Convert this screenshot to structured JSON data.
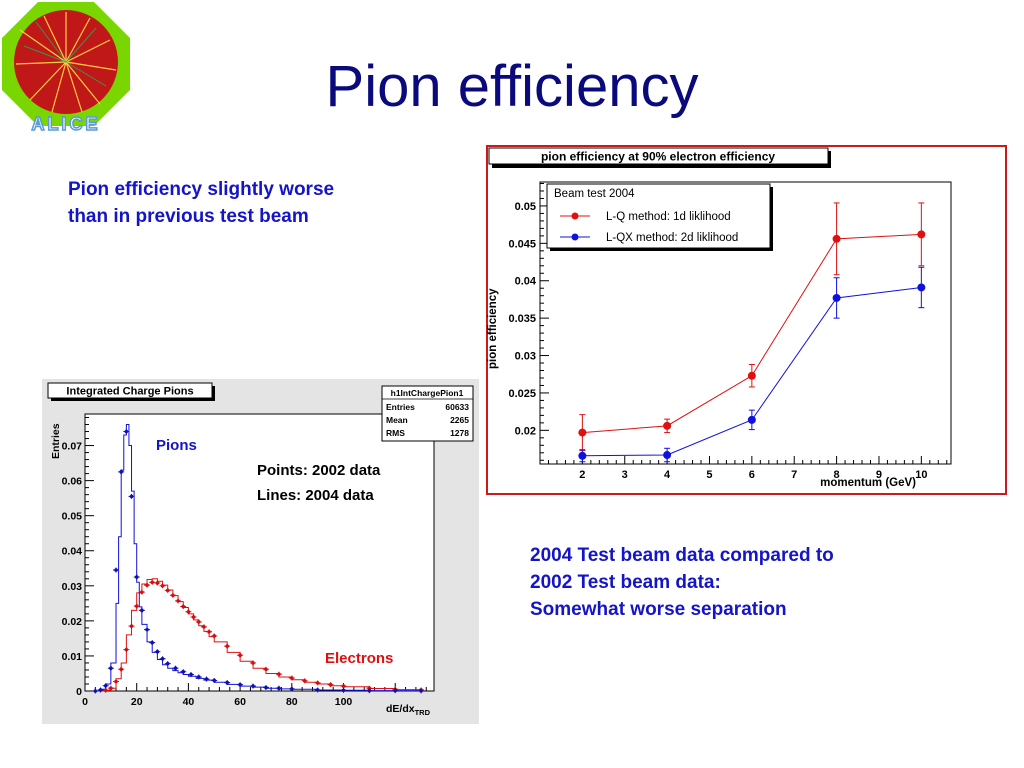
{
  "slide": {
    "title": "Pion efficiency",
    "logo_text": "ALICE",
    "note_left": [
      "Pion efficiency slightly worse",
      "than in previous test beam"
    ],
    "note_right": [
      "2004 Test beam  data compared to",
      "2002 Test beam data:",
      "Somewhat worse separation"
    ]
  },
  "colors": {
    "title": "#0a0a7c",
    "note": "#1414c8",
    "red": "#e01010",
    "blue": "#1010e0",
    "frame_red": "#cc1a1a"
  },
  "chart_data": [
    {
      "type": "scatter",
      "title": "pion efficiency at 90% electron efficiency",
      "xlabel": "momentum (GeV)",
      "ylabel": "pion efficiency",
      "xlim": [
        1.0,
        10.7
      ],
      "ylim": [
        0.0155,
        0.0532
      ],
      "xticks": [
        "2",
        "3",
        "4",
        "5",
        "6",
        "7",
        "8",
        "9",
        "10"
      ],
      "yticks": [
        "0.02",
        "0.025",
        "0.03",
        "0.035",
        "0.04",
        "0.045",
        "0.05"
      ],
      "legend": {
        "title": "Beam test 2004",
        "position": "top-left",
        "entries": [
          "L-Q method: 1d liklihood",
          "L-QX method: 2d liklihood"
        ]
      },
      "series": [
        {
          "name": "L-Q method: 1d liklihood",
          "color": "#e01010",
          "points": [
            {
              "x": 2,
              "y": 0.0197,
              "err": 0.0024
            },
            {
              "x": 4,
              "y": 0.0206,
              "err": 0.0009
            },
            {
              "x": 6,
              "y": 0.0273,
              "err": 0.0015
            },
            {
              "x": 8,
              "y": 0.0456,
              "err": 0.0048
            },
            {
              "x": 10,
              "y": 0.0462,
              "err": 0.0042
            }
          ]
        },
        {
          "name": "L-QX method: 2d liklihood",
          "color": "#1010e0",
          "points": [
            {
              "x": 2,
              "y": 0.0166,
              "err": 0.0008
            },
            {
              "x": 4,
              "y": 0.0167,
              "err": 0.0009
            },
            {
              "x": 6,
              "y": 0.0214,
              "err": 0.0013
            },
            {
              "x": 8,
              "y": 0.0377,
              "err": 0.0027
            },
            {
              "x": 10,
              "y": 0.0391,
              "err": 0.0027
            }
          ]
        }
      ]
    },
    {
      "type": "line",
      "title": "Integrated Charge Pions",
      "xlabel": "dE/dx",
      "xlabel_sub": "TRD",
      "ylabel": "Entries",
      "xlim": [
        0,
        135
      ],
      "ylim": [
        0,
        0.079
      ],
      "xticks": [
        "0",
        "20",
        "40",
        "60",
        "80",
        "100"
      ],
      "yticks": [
        "0",
        "0.01",
        "0.02",
        "0.03",
        "0.04",
        "0.05",
        "0.06",
        "0.07"
      ],
      "stats": {
        "name": "h1IntChargePion1",
        "rows": [
          {
            "label": "Entries",
            "value": "60633"
          },
          {
            "label": "Mean",
            "value": "2265"
          },
          {
            "label": "RMS",
            "value": "1278"
          }
        ]
      },
      "annotations": {
        "pions": "Pions",
        "points": "Points: 2002 data",
        "lines": "Lines:  2004 data",
        "electrons": "Electrons"
      },
      "pion_line_x": [
        4,
        6,
        8,
        10,
        12,
        13,
        14,
        15,
        16,
        17,
        18,
        19,
        20,
        21,
        22,
        24,
        26,
        28,
        30,
        32,
        34,
        36,
        38,
        40,
        43,
        46,
        50,
        55,
        60,
        65,
        70,
        75,
        80,
        90,
        100,
        110,
        120,
        130
      ],
      "pion_line_y": [
        0,
        0.0005,
        0.002,
        0.008,
        0.025,
        0.044,
        0.063,
        0.073,
        0.076,
        0.07,
        0.057,
        0.042,
        0.031,
        0.024,
        0.019,
        0.014,
        0.011,
        0.009,
        0.0075,
        0.0065,
        0.0058,
        0.0052,
        0.0047,
        0.0042,
        0.0036,
        0.0031,
        0.0025,
        0.0019,
        0.0014,
        0.0011,
        0.0008,
        0.0006,
        0.0005,
        0.0003,
        0.0002,
        0.0001,
        0.0001,
        5e-05
      ],
      "pion_points_x": [
        4,
        6,
        8,
        10,
        12,
        14,
        16,
        18,
        20,
        22,
        24,
        26,
        28,
        30,
        32,
        35,
        38,
        41,
        44,
        47,
        50,
        55,
        60,
        65,
        70,
        75,
        80,
        90,
        100,
        110,
        120,
        130
      ],
      "pion_points_y": [
        0,
        0.0003,
        0.0015,
        0.0065,
        0.0345,
        0.0625,
        0.074,
        0.0555,
        0.0325,
        0.023,
        0.0175,
        0.0138,
        0.0112,
        0.0092,
        0.0078,
        0.0065,
        0.0055,
        0.0047,
        0.004,
        0.0034,
        0.003,
        0.0024,
        0.0018,
        0.0014,
        0.001,
        0.0008,
        0.0006,
        0.0003,
        0.0002,
        0.0001,
        0.0001,
        5e-05
      ],
      "electron_line_x": [
        4,
        8,
        10,
        12,
        14,
        16,
        18,
        20,
        22,
        24,
        26,
        28,
        30,
        32,
        34,
        36,
        38,
        40,
        42,
        44,
        46,
        48,
        50,
        55,
        60,
        65,
        70,
        75,
        80,
        85,
        90,
        95,
        100,
        110,
        120,
        130
      ],
      "electron_line_y": [
        0,
        0.0002,
        0.0008,
        0.0035,
        0.008,
        0.016,
        0.023,
        0.028,
        0.0305,
        0.0318,
        0.032,
        0.0313,
        0.0302,
        0.0288,
        0.0272,
        0.0255,
        0.0238,
        0.022,
        0.0203,
        0.0186,
        0.017,
        0.0155,
        0.014,
        0.011,
        0.0085,
        0.0065,
        0.005,
        0.004,
        0.0032,
        0.0025,
        0.002,
        0.0015,
        0.0012,
        0.0007,
        0.0004,
        0.0002
      ],
      "electron_points_x": [
        8,
        10,
        12,
        14,
        16,
        18,
        20,
        22,
        24,
        26,
        28,
        30,
        32,
        34,
        36,
        38,
        40,
        42,
        44,
        46,
        48,
        50,
        55,
        60,
        65,
        70,
        75,
        80,
        85,
        90,
        95,
        100,
        110,
        120,
        130
      ],
      "electron_points_y": [
        0.0002,
        0.0008,
        0.0027,
        0.0062,
        0.0118,
        0.0185,
        0.0242,
        0.0282,
        0.0302,
        0.031,
        0.0308,
        0.03,
        0.0287,
        0.0273,
        0.0257,
        0.0241,
        0.0226,
        0.0211,
        0.0197,
        0.0183,
        0.0169,
        0.0157,
        0.0128,
        0.0102,
        0.008,
        0.0062,
        0.0048,
        0.0037,
        0.0029,
        0.0023,
        0.0018,
        0.0014,
        0.0008,
        0.0005,
        0.0003
      ]
    }
  ]
}
